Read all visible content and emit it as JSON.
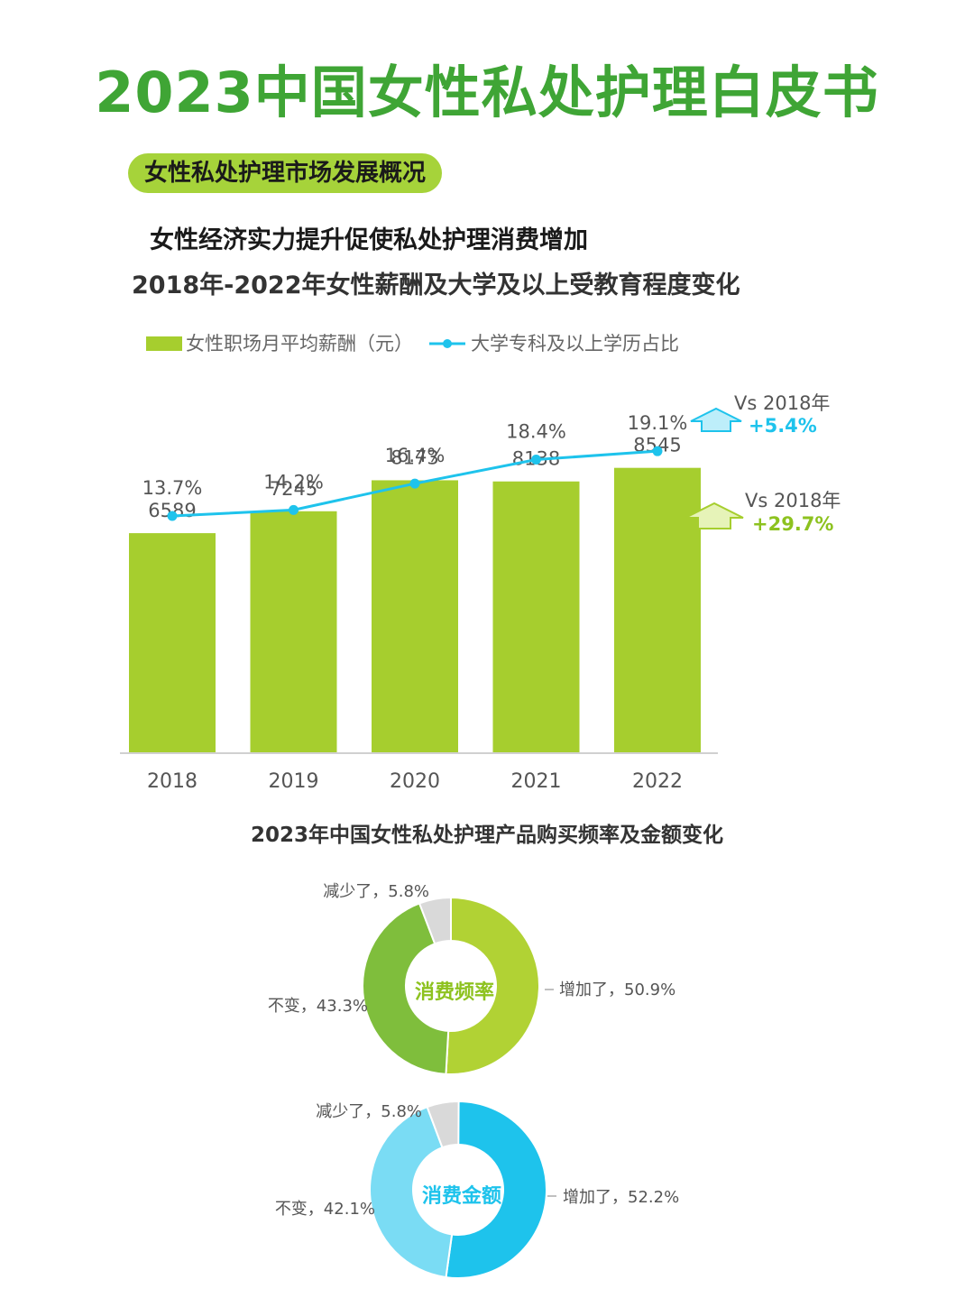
{
  "header": {
    "title": "2023中国女性私处护理白皮书",
    "section_badge": "女性私处护理市场发展概况",
    "subtitle": "女性经济实力提升促使私处护理消费增加"
  },
  "colors": {
    "title_green": "#3fa535",
    "bar_green": "#a6ce2e",
    "line_blue": "#1ec3ec",
    "badge_green": "#a6d33a"
  },
  "chart_data": [
    {
      "type": "bar",
      "title": "2018年-2022年女性薪酬及大学及以上受教育程度变化",
      "categories": [
        "2018",
        "2019",
        "2020",
        "2021",
        "2022"
      ],
      "series": [
        {
          "name": "女性职场月平均薪酬（元）",
          "type": "bar",
          "values": [
            6589,
            7245,
            8173,
            8138,
            8545
          ]
        },
        {
          "name": "大学专科及以上学历占比",
          "type": "line",
          "values": [
            13.7,
            14.2,
            16.4,
            18.4,
            19.1
          ],
          "labels": [
            "13.7%",
            "14.2%",
            "16.4%",
            "18.4%",
            "19.1%"
          ]
        }
      ],
      "legend_position": "top-left",
      "grid": false,
      "annotations": [
        {
          "vs": "Vs 2018年",
          "change": "+5.4%",
          "series": "大学专科及以上学历占比"
        },
        {
          "vs": "Vs 2018年",
          "change": "+29.7%",
          "series": "女性职场月平均薪酬（元）"
        }
      ]
    },
    {
      "type": "pie",
      "title": "2023年中国女性私处护理产品购买频率及金额变化",
      "charts": [
        {
          "center_label": "消费频率",
          "slices": [
            {
              "label": "增加了，50.9%",
              "value": 50.9,
              "color": "#b1d234"
            },
            {
              "label": "不变，43.3%",
              "value": 43.3,
              "color": "#7fbe3c"
            },
            {
              "label": "减少了，5.8%",
              "value": 5.8,
              "color": "#d9d9d9"
            }
          ]
        },
        {
          "center_label": "消费金额",
          "slices": [
            {
              "label": "增加了，52.2%",
              "value": 52.2,
              "color": "#1ec3ec"
            },
            {
              "label": "不变，42.1%",
              "value": 42.1,
              "color": "#7adcf4"
            },
            {
              "label": "减少了，5.8%",
              "value": 5.8,
              "color": "#d9d9d9"
            }
          ]
        }
      ]
    }
  ]
}
